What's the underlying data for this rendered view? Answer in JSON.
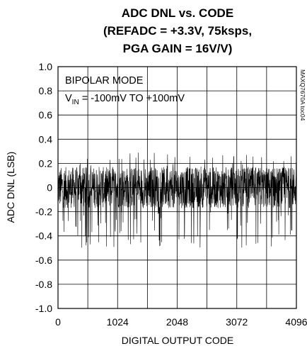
{
  "chart_data": {
    "type": "line",
    "title_lines": [
      "ADC DNL vs. CODE",
      "(REFADC = +3.3V, 75ksps,",
      "PGA GAIN = 16V/V)"
    ],
    "xlabel": "DIGITAL OUTPUT CODE",
    "ylabel": "ADC DNL (LSB)",
    "xlim": [
      0,
      4096
    ],
    "ylim": [
      -1.0,
      1.0
    ],
    "x_ticks": [
      "0",
      "1024",
      "2048",
      "3072",
      "4096"
    ],
    "x_tick_values": [
      0,
      1024,
      2048,
      3072,
      4096
    ],
    "y_ticks": [
      "1.0",
      "0.8",
      "0.6",
      "0.4",
      "0.2",
      "0",
      "-0.2",
      "-0.4",
      "-0.6",
      "-0.8",
      "-1.0"
    ],
    "y_tick_values": [
      1.0,
      0.8,
      0.6,
      0.4,
      0.2,
      0,
      -0.2,
      -0.4,
      -0.6,
      -0.8,
      -1.0
    ],
    "grid": true,
    "annotation": {
      "line1": "BIPOLAR MODE",
      "line2_prefix": "V",
      "line2_sub": "IN",
      "line2_rest": " = -100mV TO +100mV"
    },
    "side_label": "MAXQ7670A toc04",
    "series": [
      {
        "x_range": [
          0,
          4095
        ],
        "typical_band": [
          -0.2,
          0.2
        ],
        "max": 0.3,
        "min": -0.5,
        "color": "#000000"
      }
    ]
  }
}
